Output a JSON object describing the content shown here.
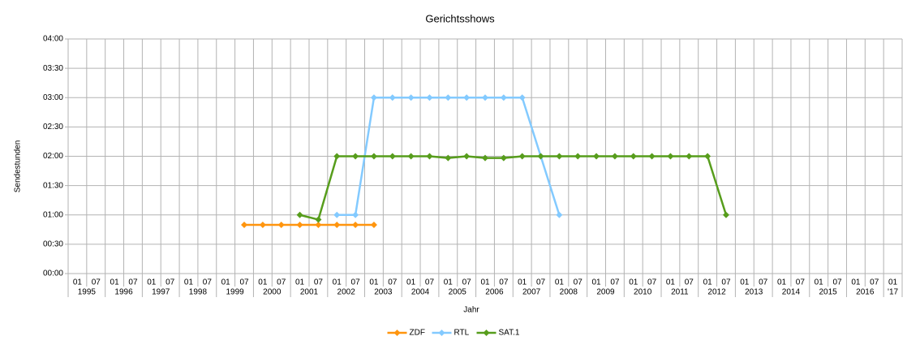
{
  "chart_data": {
    "type": "line",
    "title": "Gerichtsshows",
    "x_label": "Jahr",
    "y_label": "Sendestunden",
    "categories": [
      "01",
      "07",
      "01",
      "07",
      "01",
      "07",
      "01",
      "07",
      "01",
      "07",
      "01",
      "07",
      "01",
      "07",
      "01",
      "07",
      "01",
      "07",
      "01",
      "07",
      "01",
      "07",
      "01",
      "07",
      "01",
      "07",
      "01",
      "07",
      "01",
      "07",
      "01",
      "07",
      "01",
      "07",
      "01",
      "07",
      "01",
      "07",
      "01",
      "07",
      "01",
      "07",
      "01",
      "07",
      "01"
    ],
    "year_labels": [
      "1995",
      "1996",
      "1997",
      "1998",
      "1999",
      "2000",
      "2001",
      "2002",
      "2003",
      "2004",
      "2005",
      "2006",
      "2007",
      "2008",
      "2009",
      "2010",
      "2011",
      "2012",
      "2013",
      "2014",
      "2015",
      "2016",
      "'17"
    ],
    "ylim": [
      0,
      4
    ],
    "yticks": [
      {
        "value": 0,
        "label": "00:00"
      },
      {
        "value": 0.5,
        "label": "00:30"
      },
      {
        "value": 1,
        "label": "01:00"
      },
      {
        "value": 1.5,
        "label": "01:30"
      },
      {
        "value": 2,
        "label": "02:00"
      },
      {
        "value": 2.5,
        "label": "02:30"
      },
      {
        "value": 3,
        "label": "03:00"
      },
      {
        "value": 3.5,
        "label": "03:30"
      },
      {
        "value": 4,
        "label": "04:00"
      }
    ],
    "grid": true,
    "legend": "bottom",
    "series": [
      {
        "name": "ZDF",
        "color": "#ff950e",
        "values": [
          null,
          null,
          null,
          null,
          null,
          null,
          null,
          null,
          null,
          0.83,
          0.83,
          0.83,
          0.83,
          0.83,
          0.83,
          0.83,
          0.83,
          null,
          null,
          null,
          null,
          null,
          null,
          null,
          null,
          null,
          null,
          null,
          null,
          null,
          null,
          null,
          null,
          null,
          null,
          null,
          null,
          null,
          null,
          null,
          null,
          null,
          null,
          null,
          null
        ]
      },
      {
        "name": "RTL",
        "color": "#83caff",
        "values": [
          null,
          null,
          null,
          null,
          null,
          null,
          null,
          null,
          null,
          null,
          null,
          null,
          null,
          null,
          1,
          1,
          3,
          3,
          3,
          3,
          3,
          3,
          3,
          3,
          3,
          2,
          1,
          null,
          null,
          null,
          null,
          null,
          null,
          null,
          null,
          null,
          null,
          null,
          null,
          null,
          null,
          null,
          null,
          null,
          null
        ]
      },
      {
        "name": "SAT.1",
        "color": "#579d1c",
        "values": [
          null,
          null,
          null,
          null,
          null,
          null,
          null,
          null,
          null,
          null,
          null,
          null,
          1,
          0.92,
          2,
          2,
          2,
          2,
          2,
          2,
          1.97,
          2,
          1.97,
          1.97,
          2,
          2,
          2,
          2,
          2,
          2,
          2,
          2,
          2,
          2,
          2,
          1,
          null,
          null,
          null,
          null,
          null,
          null,
          null,
          null,
          null
        ]
      }
    ]
  }
}
